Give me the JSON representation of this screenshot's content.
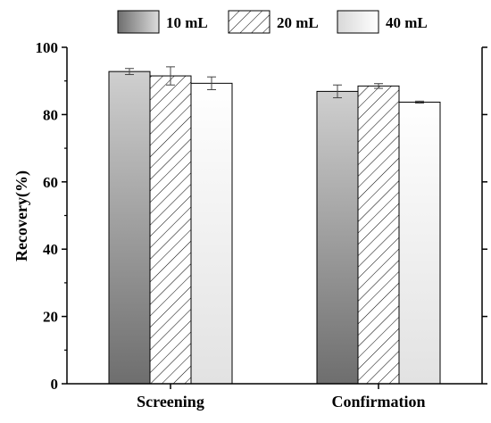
{
  "chart_data": {
    "type": "bar",
    "categories": [
      "Screening",
      "Confirmation"
    ],
    "ylabel": "Recovery(%)",
    "xlabel": "",
    "ylim": [
      0,
      100
    ],
    "yticks": [
      0,
      20,
      40,
      60,
      80,
      100
    ],
    "grid": false,
    "legend_position": "top",
    "series": [
      {
        "name": "10 mL",
        "values": [
          92.8,
          86.9
        ],
        "errors": [
          0.9,
          1.9
        ],
        "fill": "gradient-gray"
      },
      {
        "name": "20 mL",
        "values": [
          91.5,
          88.5
        ],
        "errors": [
          2.7,
          0.7
        ],
        "fill": "hatched"
      },
      {
        "name": "40 mL",
        "values": [
          89.3,
          83.7
        ],
        "errors": [
          1.9,
          0.3
        ],
        "fill": "gradient-white"
      }
    ]
  }
}
